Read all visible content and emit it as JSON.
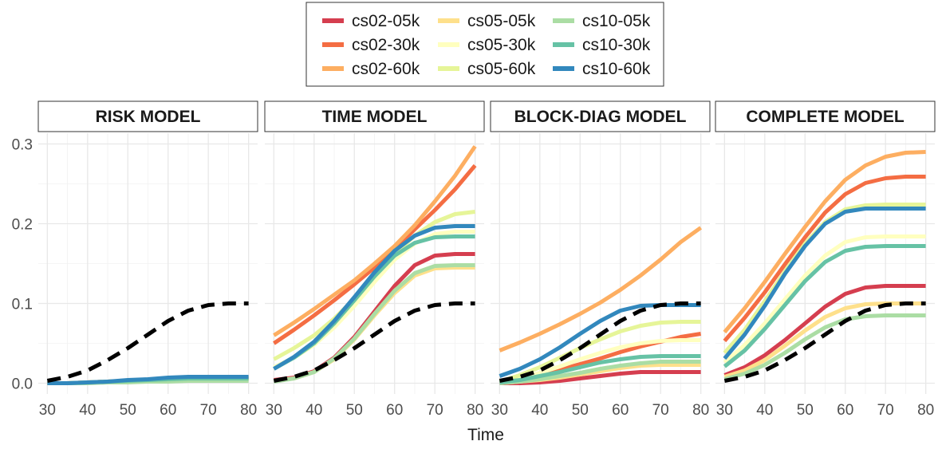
{
  "chart_data": {
    "type": "line",
    "xlabel": "Time",
    "ylabel": "",
    "xlim": [
      30,
      80
    ],
    "ylim": [
      0,
      0.3
    ],
    "x_ticks": [
      30,
      40,
      50,
      60,
      70,
      80
    ],
    "y_ticks": [
      0.0,
      0.1,
      0.2,
      0.3
    ],
    "y_tick_labels": [
      "0.0",
      "0.1",
      "0.2",
      "0.3"
    ],
    "grid": true,
    "legend_position": "top",
    "x": [
      30,
      35,
      40,
      45,
      50,
      55,
      60,
      65,
      70,
      75,
      80
    ],
    "reference": {
      "style": "dashed",
      "color": "#000000",
      "values": [
        0.003,
        0.008,
        0.016,
        0.029,
        0.044,
        0.061,
        0.078,
        0.091,
        0.098,
        0.1,
        0.1
      ]
    },
    "series_meta": [
      {
        "name": "cs02-05k",
        "color": "#D53E4F"
      },
      {
        "name": "cs02-30k",
        "color": "#F46D43"
      },
      {
        "name": "cs02-60k",
        "color": "#FDAE61"
      },
      {
        "name": "cs05-05k",
        "color": "#FEE08B"
      },
      {
        "name": "cs05-30k",
        "color": "#FFFFBF"
      },
      {
        "name": "cs05-60k",
        "color": "#E6F598"
      },
      {
        "name": "cs10-05k",
        "color": "#ABDDA4"
      },
      {
        "name": "cs10-30k",
        "color": "#66C2A5"
      },
      {
        "name": "cs10-60k",
        "color": "#3288BD"
      }
    ],
    "panels": [
      {
        "title": "RISK MODEL",
        "series": [
          [
            0.0,
            0.0,
            0.001,
            0.002,
            0.003,
            0.004,
            0.005,
            0.006,
            0.006,
            0.006,
            0.006
          ],
          [
            0.0,
            0.0,
            0.001,
            0.002,
            0.003,
            0.004,
            0.005,
            0.006,
            0.006,
            0.006,
            0.006
          ],
          [
            0.0,
            0.0,
            0.001,
            0.002,
            0.003,
            0.004,
            0.005,
            0.006,
            0.006,
            0.006,
            0.006
          ],
          [
            0.0,
            0.0,
            0.001,
            0.002,
            0.003,
            0.004,
            0.005,
            0.006,
            0.006,
            0.006,
            0.006
          ],
          [
            0.0,
            0.0,
            0.001,
            0.002,
            0.003,
            0.004,
            0.005,
            0.006,
            0.006,
            0.006,
            0.006
          ],
          [
            0.0,
            0.0,
            0.001,
            0.002,
            0.003,
            0.004,
            0.005,
            0.006,
            0.006,
            0.006,
            0.006
          ],
          [
            0.0,
            0.0,
            0.0,
            0.001,
            0.001,
            0.002,
            0.002,
            0.003,
            0.003,
            0.003,
            0.003
          ],
          [
            0.0,
            0.0,
            0.001,
            0.002,
            0.003,
            0.004,
            0.005,
            0.006,
            0.006,
            0.006,
            0.006
          ],
          [
            0.0,
            0.0,
            0.001,
            0.002,
            0.004,
            0.005,
            0.007,
            0.008,
            0.008,
            0.008,
            0.008
          ]
        ]
      },
      {
        "title": "TIME MODEL",
        "series": [
          [
            0.004,
            0.007,
            0.015,
            0.032,
            0.058,
            0.09,
            0.122,
            0.148,
            0.16,
            0.162,
            0.162
          ],
          [
            0.05,
            0.067,
            0.085,
            0.104,
            0.124,
            0.145,
            0.168,
            0.193,
            0.217,
            0.243,
            0.273
          ],
          [
            0.06,
            0.076,
            0.093,
            0.111,
            0.129,
            0.15,
            0.172,
            0.198,
            0.228,
            0.26,
            0.297
          ],
          [
            0.003,
            0.006,
            0.014,
            0.03,
            0.055,
            0.085,
            0.113,
            0.135,
            0.144,
            0.145,
            0.145
          ],
          [
            0.02,
            0.032,
            0.048,
            0.07,
            0.097,
            0.127,
            0.155,
            0.175,
            0.187,
            0.19,
            0.19
          ],
          [
            0.03,
            0.044,
            0.06,
            0.081,
            0.106,
            0.134,
            0.162,
            0.185,
            0.202,
            0.212,
            0.215
          ],
          [
            0.002,
            0.006,
            0.014,
            0.031,
            0.056,
            0.087,
            0.116,
            0.138,
            0.147,
            0.148,
            0.148
          ],
          [
            0.018,
            0.032,
            0.05,
            0.075,
            0.104,
            0.134,
            0.16,
            0.176,
            0.183,
            0.184,
            0.184
          ],
          [
            0.018,
            0.033,
            0.052,
            0.078,
            0.108,
            0.139,
            0.166,
            0.185,
            0.195,
            0.197,
            0.197
          ]
        ]
      },
      {
        "title": "BLOCK-DIAG MODEL",
        "series": [
          [
            0.0,
            0.0,
            0.001,
            0.003,
            0.006,
            0.009,
            0.012,
            0.014,
            0.014,
            0.014,
            0.014
          ],
          [
            0.002,
            0.006,
            0.011,
            0.017,
            0.024,
            0.031,
            0.039,
            0.046,
            0.052,
            0.058,
            0.062
          ],
          [
            0.041,
            0.051,
            0.062,
            0.074,
            0.087,
            0.101,
            0.117,
            0.135,
            0.155,
            0.177,
            0.195
          ],
          [
            0.0,
            0.002,
            0.004,
            0.007,
            0.011,
            0.015,
            0.019,
            0.022,
            0.023,
            0.023,
            0.023
          ],
          [
            0.001,
            0.006,
            0.013,
            0.021,
            0.03,
            0.038,
            0.045,
            0.05,
            0.053,
            0.054,
            0.054
          ],
          [
            0.002,
            0.01,
            0.02,
            0.032,
            0.044,
            0.055,
            0.065,
            0.072,
            0.076,
            0.077,
            0.077
          ],
          [
            0.0,
            0.002,
            0.005,
            0.009,
            0.013,
            0.018,
            0.022,
            0.025,
            0.027,
            0.027,
            0.027
          ],
          [
            0.001,
            0.004,
            0.009,
            0.014,
            0.02,
            0.026,
            0.03,
            0.033,
            0.034,
            0.034,
            0.034
          ],
          [
            0.009,
            0.018,
            0.03,
            0.045,
            0.062,
            0.078,
            0.091,
            0.097,
            0.098,
            0.098,
            0.098
          ]
        ]
      },
      {
        "title": "COMPLETE MODEL",
        "series": [
          [
            0.01,
            0.02,
            0.035,
            0.054,
            0.075,
            0.096,
            0.112,
            0.12,
            0.122,
            0.122,
            0.122
          ],
          [
            0.053,
            0.082,
            0.114,
            0.149,
            0.183,
            0.214,
            0.237,
            0.251,
            0.257,
            0.259,
            0.259
          ],
          [
            0.064,
            0.094,
            0.127,
            0.162,
            0.196,
            0.228,
            0.255,
            0.273,
            0.284,
            0.289,
            0.29
          ],
          [
            0.008,
            0.016,
            0.029,
            0.047,
            0.066,
            0.083,
            0.094,
            0.099,
            0.1,
            0.1,
            0.1
          ],
          [
            0.026,
            0.048,
            0.075,
            0.105,
            0.135,
            0.16,
            0.177,
            0.183,
            0.184,
            0.184,
            0.184
          ],
          [
            0.038,
            0.067,
            0.103,
            0.14,
            0.175,
            0.202,
            0.218,
            0.223,
            0.224,
            0.224,
            0.224
          ],
          [
            0.005,
            0.012,
            0.023,
            0.038,
            0.055,
            0.07,
            0.08,
            0.084,
            0.085,
            0.085,
            0.085
          ],
          [
            0.021,
            0.041,
            0.068,
            0.098,
            0.128,
            0.152,
            0.166,
            0.171,
            0.172,
            0.172,
            0.172
          ],
          [
            0.031,
            0.061,
            0.097,
            0.137,
            0.172,
            0.2,
            0.215,
            0.219,
            0.219,
            0.219,
            0.219
          ]
        ]
      }
    ]
  }
}
